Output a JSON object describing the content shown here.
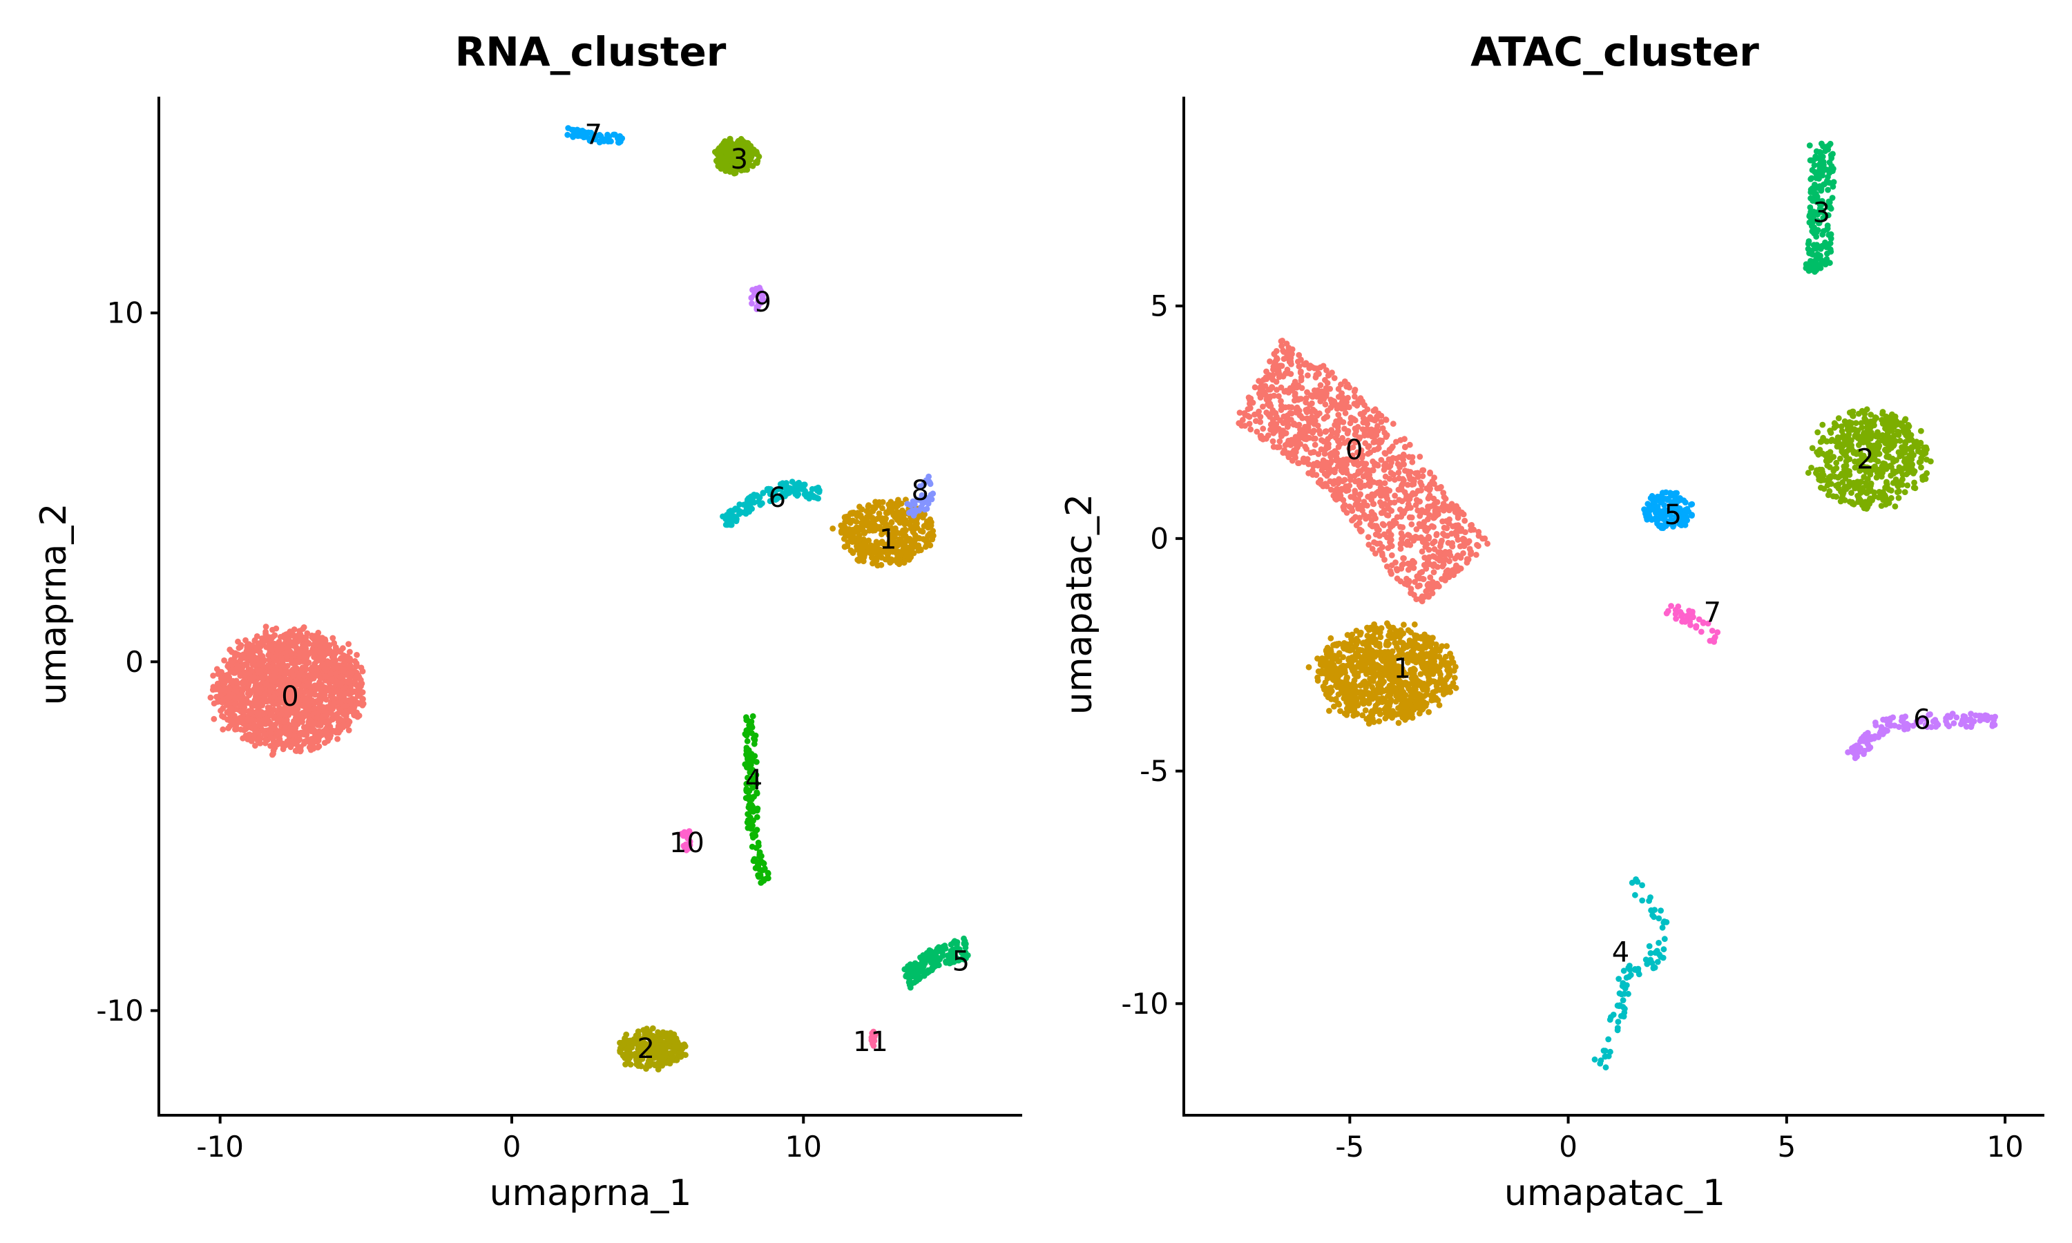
{
  "chart_data": [
    {
      "type": "scatter",
      "title": "RNA_cluster",
      "xlabel": "umaprna_1",
      "ylabel": "umaprna_2",
      "xlim": [
        -12.1,
        17.5
      ],
      "ylim": [
        -13.0,
        16.2
      ],
      "xticks": [
        -10,
        0,
        10
      ],
      "yticks": [
        -10,
        0,
        10
      ],
      "xtick_labels": [
        "-10",
        "0",
        "10"
      ],
      "ytick_labels": [
        "-10",
        "0",
        "10"
      ],
      "clusters": [
        {
          "label": "0",
          "color": "#F8766D",
          "center": [
            -7.6,
            -0.8
          ],
          "spread": [
            2.5,
            1.7
          ],
          "n": 1700,
          "shape": "blob",
          "label_pos": [
            -7.6,
            -1.0
          ]
        },
        {
          "label": "1",
          "color": "#CD9600",
          "center": [
            12.8,
            3.7
          ],
          "spread": [
            1.6,
            0.9
          ],
          "n": 420,
          "shape": "blob",
          "label_pos": [
            12.9,
            3.5
          ]
        },
        {
          "label": "2",
          "color": "#ABA300",
          "center": [
            4.8,
            -11.1
          ],
          "spread": [
            1.1,
            0.55
          ],
          "n": 280,
          "shape": "blob",
          "label_pos": [
            4.6,
            -11.1
          ]
        },
        {
          "label": "3",
          "color": "#7CAE00",
          "center": [
            7.7,
            14.5
          ],
          "spread": [
            0.75,
            0.5
          ],
          "n": 200,
          "shape": "blob",
          "label_pos": [
            7.8,
            14.4
          ]
        },
        {
          "label": "4",
          "color": "#0CB702",
          "path": [
            [
              8.2,
              -1.5
            ],
            [
              8.2,
              -3.5
            ],
            [
              8.3,
              -5.2
            ],
            [
              8.7,
              -6.3
            ]
          ],
          "n": 130,
          "width": 0.2,
          "shape": "path",
          "label_pos": [
            8.3,
            -3.4
          ]
        },
        {
          "label": "5",
          "color": "#00BE67",
          "path": [
            [
              13.5,
              -9.1
            ],
            [
              14.5,
              -8.5
            ],
            [
              15.6,
              -8.2
            ]
          ],
          "n": 170,
          "width": 0.3,
          "shape": "path",
          "label_pos": [
            15.4,
            -8.6
          ]
        },
        {
          "label": "6",
          "color": "#00BFC4",
          "path": [
            [
              7.3,
              4.0
            ],
            [
              8.3,
              4.6
            ],
            [
              9.5,
              5.0
            ],
            [
              10.6,
              4.8
            ]
          ],
          "n": 140,
          "width": 0.2,
          "shape": "path",
          "label_pos": [
            9.1,
            4.7
          ]
        },
        {
          "label": "7",
          "color": "#00A9FF",
          "path": [
            [
              1.9,
              15.2
            ],
            [
              3.0,
              15.0
            ],
            [
              3.8,
              15.0
            ]
          ],
          "n": 60,
          "width": 0.12,
          "shape": "path",
          "label_pos": [
            2.8,
            15.1
          ]
        },
        {
          "label": "8",
          "color": "#8494FF",
          "path": [
            [
              14.1,
              5.3
            ],
            [
              14.3,
              4.6
            ],
            [
              13.5,
              4.3
            ]
          ],
          "n": 40,
          "width": 0.2,
          "shape": "path",
          "label_pos": [
            14.0,
            4.9
          ]
        },
        {
          "label": "9",
          "color": "#C77CFF",
          "center": [
            8.4,
            10.4
          ],
          "spread": [
            0.25,
            0.35
          ],
          "n": 28,
          "shape": "blob",
          "label_pos": [
            8.6,
            10.3
          ]
        },
        {
          "label": "10",
          "color": "#FF61CC",
          "center": [
            6.0,
            -5.1
          ],
          "spread": [
            0.2,
            0.3
          ],
          "n": 22,
          "shape": "blob",
          "label_pos": [
            6.0,
            -5.2
          ]
        },
        {
          "label": "11",
          "color": "#FF68A1",
          "center": [
            12.4,
            -10.8
          ],
          "spread": [
            0.15,
            0.25
          ],
          "n": 12,
          "shape": "blob",
          "label_pos": [
            12.3,
            -10.9
          ]
        }
      ]
    },
    {
      "type": "scatter",
      "title": "ATAC_cluster",
      "xlabel": "umapatac_1",
      "ylabel": "umapatac_2",
      "xlim": [
        -8.8,
        10.9
      ],
      "ylim": [
        -12.4,
        9.5
      ],
      "xticks": [
        -5,
        0,
        5,
        10
      ],
      "yticks": [
        -10,
        -5,
        0,
        5
      ],
      "xtick_labels": [
        "-5",
        "0",
        "5",
        "10"
      ],
      "ytick_labels": [
        "-10",
        "-5",
        "0",
        "5"
      ],
      "clusters": [
        {
          "label": "0",
          "color": "#F8766D",
          "path": [
            [
              -7.1,
              3.4
            ],
            [
              -5.8,
              2.6
            ],
            [
              -4.6,
              1.6
            ],
            [
              -3.5,
              0.2
            ],
            [
              -2.6,
              -0.8
            ]
          ],
          "n": 1150,
          "width": 1.05,
          "shape": "path",
          "label_pos": [
            -4.9,
            1.9
          ]
        },
        {
          "label": "1",
          "color": "#CD9600",
          "center": [
            -4.2,
            -2.9
          ],
          "spread": [
            1.55,
            1.0
          ],
          "n": 900,
          "shape": "blob",
          "label_pos": [
            -3.8,
            -2.8
          ]
        },
        {
          "label": "2",
          "color": "#7CAE00",
          "center": [
            6.9,
            1.7
          ],
          "spread": [
            1.35,
            1.05
          ],
          "n": 520,
          "shape": "blob",
          "label_pos": [
            6.8,
            1.7
          ]
        },
        {
          "label": "3",
          "color": "#00BE67",
          "path": [
            [
              5.8,
              8.5
            ],
            [
              5.8,
              7.0
            ],
            [
              5.7,
              5.7
            ]
          ],
          "n": 190,
          "width": 0.28,
          "shape": "path",
          "label_pos": [
            5.8,
            7.0
          ]
        },
        {
          "label": "4",
          "color": "#00BFC4",
          "path": [
            [
              1.4,
              -7.4
            ],
            [
              2.1,
              -8.1
            ],
            [
              2.0,
              -9.1
            ],
            [
              1.3,
              -9.4
            ],
            [
              1.1,
              -10.5
            ],
            [
              0.7,
              -11.3
            ]
          ],
          "n": 85,
          "width": 0.18,
          "shape": "path",
          "label_pos": [
            1.2,
            -8.9
          ]
        },
        {
          "label": "5",
          "color": "#00A9FF",
          "center": [
            2.3,
            0.6
          ],
          "spread": [
            0.55,
            0.4
          ],
          "n": 130,
          "shape": "blob",
          "label_pos": [
            2.4,
            0.5
          ]
        },
        {
          "label": "6",
          "color": "#C77CFF",
          "path": [
            [
              6.5,
              -4.7
            ],
            [
              7.2,
              -4.0
            ],
            [
              8.4,
              -3.9
            ],
            [
              9.8,
              -3.9
            ]
          ],
          "n": 130,
          "width": 0.15,
          "shape": "path",
          "label_pos": [
            8.1,
            -3.9
          ]
        },
        {
          "label": "7",
          "color": "#FF61CC",
          "path": [
            [
              2.3,
              -1.5
            ],
            [
              3.0,
              -1.8
            ],
            [
              3.4,
              -2.2
            ]
          ],
          "n": 35,
          "width": 0.15,
          "shape": "path",
          "label_pos": [
            3.3,
            -1.6
          ]
        }
      ]
    }
  ]
}
